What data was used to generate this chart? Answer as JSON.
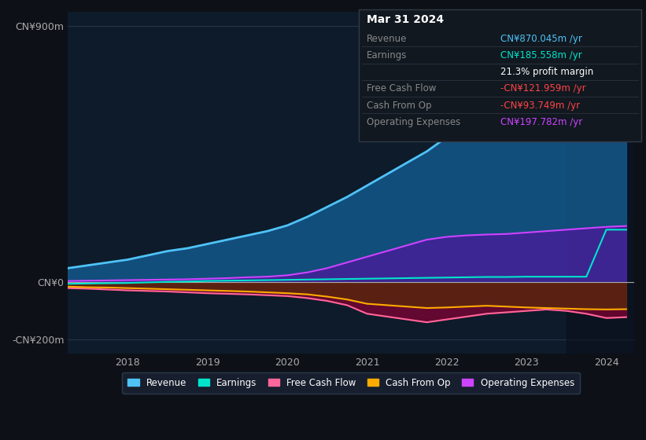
{
  "bg_color": "#0d1117",
  "plot_bg_color": "#0d1b2a",
  "title_box": {
    "date": "Mar 31 2024",
    "rows": [
      {
        "label": "Revenue",
        "value": "CN¥870.045m /yr",
        "value_color": "#4fc3f7"
      },
      {
        "label": "Earnings",
        "value": "CN¥185.558m /yr",
        "value_color": "#00e5cc"
      },
      {
        "label": "",
        "value": "21.3% profit margin",
        "value_color": "#ffffff"
      },
      {
        "label": "Free Cash Flow",
        "value": "-CN¥121.959m /yr",
        "value_color": "#ff4444"
      },
      {
        "label": "Cash From Op",
        "value": "-CN¥93.749m /yr",
        "value_color": "#ff4444"
      },
      {
        "label": "Operating Expenses",
        "value": "CN¥197.782m /yr",
        "value_color": "#cc44ff"
      }
    ]
  },
  "years": [
    2017.25,
    2017.5,
    2017.75,
    2018.0,
    2018.25,
    2018.5,
    2018.75,
    2019.0,
    2019.25,
    2019.5,
    2019.75,
    2020.0,
    2020.25,
    2020.5,
    2020.75,
    2021.0,
    2021.25,
    2021.5,
    2021.75,
    2022.0,
    2022.25,
    2022.5,
    2022.75,
    2023.0,
    2023.25,
    2023.5,
    2023.75,
    2024.0,
    2024.25
  ],
  "revenue": [
    50,
    60,
    70,
    80,
    95,
    110,
    120,
    135,
    150,
    165,
    180,
    200,
    230,
    265,
    300,
    340,
    380,
    420,
    460,
    510,
    540,
    560,
    580,
    620,
    680,
    730,
    790,
    850,
    870
  ],
  "earnings": [
    -5,
    -4,
    -3,
    -2,
    0,
    2,
    3,
    5,
    6,
    7,
    8,
    9,
    10,
    11,
    12,
    13,
    14,
    15,
    16,
    17,
    18,
    19,
    19,
    20,
    20,
    20,
    20,
    185,
    185
  ],
  "free_cash": [
    -20,
    -22,
    -25,
    -28,
    -30,
    -32,
    -35,
    -38,
    -40,
    -42,
    -45,
    -48,
    -55,
    -65,
    -80,
    -110,
    -120,
    -130,
    -140,
    -130,
    -120,
    -110,
    -105,
    -100,
    -95,
    -100,
    -110,
    -125,
    -122
  ],
  "cash_op": [
    -15,
    -17,
    -18,
    -20,
    -22,
    -24,
    -26,
    -28,
    -30,
    -32,
    -35,
    -38,
    -42,
    -50,
    -60,
    -75,
    -80,
    -85,
    -90,
    -88,
    -85,
    -82,
    -85,
    -88,
    -90,
    -92,
    -94,
    -95,
    -94
  ],
  "op_expenses": [
    5,
    6,
    7,
    8,
    9,
    10,
    11,
    13,
    15,
    18,
    20,
    25,
    35,
    50,
    70,
    90,
    110,
    130,
    150,
    160,
    165,
    168,
    170,
    175,
    180,
    185,
    190,
    195,
    198
  ],
  "ylim": [
    -250,
    950
  ],
  "yticks": [
    -200,
    0,
    900
  ],
  "ytick_labels": [
    "-CN¥200m",
    "CN¥0",
    "CN¥900m"
  ],
  "xticks": [
    2018,
    2019,
    2020,
    2021,
    2022,
    2023,
    2024
  ],
  "highlight_x_start": 2023.5,
  "legend": [
    {
      "label": "Revenue",
      "color": "#4fc3f7"
    },
    {
      "label": "Earnings",
      "color": "#00e5cc"
    },
    {
      "label": "Free Cash Flow",
      "color": "#ff6699"
    },
    {
      "label": "Cash From Op",
      "color": "#ffaa00"
    },
    {
      "label": "Operating Expenses",
      "color": "#cc44ff"
    }
  ]
}
